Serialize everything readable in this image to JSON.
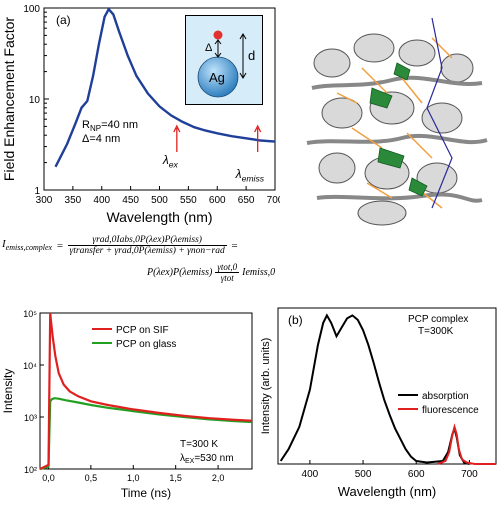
{
  "panel_a": {
    "label": "(a)",
    "ylabel": "Field Enhancement Factor",
    "xlabel": "Wavelength (nm)",
    "annotation_r": "R",
    "annotation_r_sub": "NP",
    "annotation_r_val": "=40 nm",
    "annotation_delta": "Δ=4 nm",
    "marker_ex": "λ",
    "marker_ex_sub": "ex",
    "marker_emiss": "λ",
    "marker_emiss_sub": "emiss",
    "inset_sphere_label": "Ag",
    "inset_delta": "Δ",
    "inset_d": "d"
  },
  "equation": {
    "lhs": "I",
    "lhs_sub": "emiss,complex",
    "eq1_num": "γrad,0Iabs,0P(λex)P(λemiss)",
    "eq1_den": "γtransfer + γrad,0P(λemiss) + γnon−rad",
    "eq2_a": "P(λex)P(λemiss)",
    "eq2_num": "γtot,0",
    "eq2_den": "γtot",
    "eq2_b": "Iemiss,0"
  },
  "panel_c": {
    "ylabel": "Intensity",
    "xlabel": "Time (ns)",
    "legend_sif": "PCP on SIF",
    "legend_glass": "PCP on glass",
    "note_T": "T=300 K",
    "note_lambda": "λ",
    "note_lambda_sub": "EX",
    "note_lambda_val": "=530 nm"
  },
  "panel_b": {
    "label": "(b)",
    "title_line1": "PCP complex",
    "title_line2": "T=300K",
    "ylabel": "Intensity (arb. units)",
    "xlabel": "Wavelength (nm)",
    "legend_absorption": "absorption",
    "legend_fluorescence": "fluorescence"
  },
  "colors": {
    "enhancement": "#1f3f99",
    "sif": "#e02020",
    "glass": "#22a022",
    "absorption": "#000000",
    "fluorescence": "#e02020",
    "sphere": "#3a8fd0",
    "inset_bg": "#d6ecf8"
  },
  "chart_data": [
    {
      "type": "line",
      "ylabel": "Field Enhancement Factor",
      "xlabel": "Wavelength (nm)",
      "xlim": [
        300,
        700
      ],
      "ylim": [
        1,
        100
      ],
      "yscale": "log",
      "xticks": [
        300,
        350,
        400,
        450,
        500,
        550,
        600,
        650,
        700
      ],
      "yticks": [
        1,
        10,
        100
      ],
      "series": [
        {
          "x": [
            320,
            340,
            355,
            365,
            375,
            385,
            395,
            405,
            412,
            420,
            430,
            445,
            460,
            480,
            500,
            520,
            540,
            560,
            580,
            600,
            625,
            650,
            675,
            700
          ],
          "y": [
            1.8,
            3.2,
            5.5,
            8.0,
            9.5,
            18,
            40,
            80,
            97,
            85,
            55,
            30,
            18,
            11.5,
            8.3,
            6.6,
            5.6,
            4.9,
            4.5,
            4.2,
            3.9,
            3.7,
            3.5,
            3.4
          ]
        }
      ],
      "markers": [
        {
          "x": 530
        },
        {
          "x": 670
        }
      ]
    },
    {
      "type": "line",
      "ylabel": "Intensity",
      "xlabel": "Time (ns)",
      "xlim": [
        -0.1,
        2.4
      ],
      "ylim": [
        100,
        100000
      ],
      "yscale": "log",
      "xticks": [
        0.0,
        0.5,
        1.0,
        1.5,
        2.0
      ],
      "xtick_labels": [
        "0,0",
        "0,5",
        "1,0",
        "1,5",
        "2,0"
      ],
      "yticks": [
        100,
        1000,
        10000,
        100000
      ],
      "ytick_labels": [
        "10²",
        "10³",
        "10⁴",
        "10⁵"
      ],
      "series": [
        {
          "name": "PCP on SIF",
          "x": [
            -0.1,
            0.0,
            0.02,
            0.03,
            0.05,
            0.08,
            0.12,
            0.18,
            0.25,
            0.35,
            0.5,
            0.7,
            1.0,
            1.3,
            1.6,
            1.9,
            2.2,
            2.4
          ],
          "y": [
            100,
            120,
            100000,
            70000,
            35000,
            15000,
            7000,
            4200,
            3100,
            2500,
            2000,
            1700,
            1400,
            1200,
            1050,
            950,
            880,
            850
          ]
        },
        {
          "name": "PCP on glass",
          "x": [
            -0.1,
            0.0,
            0.02,
            0.04,
            0.07,
            0.12,
            0.2,
            0.35,
            0.5,
            0.7,
            1.0,
            1.3,
            1.6,
            1.9,
            2.2,
            2.4
          ],
          "y": [
            100,
            110,
            2000,
            2200,
            2300,
            2250,
            2100,
            1900,
            1700,
            1500,
            1300,
            1120,
            1000,
            900,
            830,
            800
          ]
        }
      ]
    },
    {
      "type": "line",
      "ylabel": "Intensity (arb. units)",
      "xlabel": "Wavelength (nm)",
      "xlim": [
        340,
        750
      ],
      "ylim": [
        0,
        1.05
      ],
      "xticks": [
        400,
        500,
        600,
        700
      ],
      "series": [
        {
          "name": "absorption",
          "x": [
            345,
            360,
            380,
            400,
            415,
            425,
            432,
            440,
            450,
            460,
            470,
            480,
            490,
            500,
            510,
            520,
            530,
            540,
            550,
            560,
            570,
            580,
            590,
            600,
            620,
            650,
            660,
            668,
            672,
            676,
            682,
            690,
            700
          ],
          "y": [
            0.02,
            0.1,
            0.25,
            0.5,
            0.8,
            0.95,
            1.0,
            0.95,
            0.86,
            0.92,
            0.98,
            1.0,
            0.97,
            0.9,
            0.8,
            0.68,
            0.55,
            0.43,
            0.33,
            0.24,
            0.17,
            0.1,
            0.05,
            0.02,
            0.01,
            0.02,
            0.08,
            0.2,
            0.24,
            0.18,
            0.06,
            0.01,
            0.0
          ]
        },
        {
          "name": "fluorescence",
          "x": [
            640,
            655,
            662,
            667,
            672,
            676,
            680,
            686,
            695,
            710,
            730,
            750
          ],
          "y": [
            0.0,
            0.02,
            0.08,
            0.18,
            0.25,
            0.2,
            0.1,
            0.03,
            0.01,
            0.0,
            0.0,
            0.0
          ]
        }
      ]
    }
  ]
}
